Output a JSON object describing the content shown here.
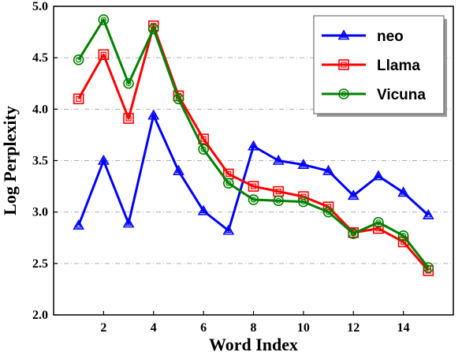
{
  "chart_data": {
    "type": "line",
    "xlabel": "Word Index",
    "ylabel": "Log Perplexity",
    "xlim": [
      0,
      16
    ],
    "ylim": [
      2.0,
      5.0
    ],
    "xticks": [
      2,
      4,
      6,
      8,
      10,
      12,
      14
    ],
    "yticks": [
      2.0,
      2.5,
      3.0,
      3.5,
      4.0,
      4.5,
      5.0
    ],
    "ytick_labels": [
      "2.0",
      "2.5",
      "3.0",
      "3.5",
      "4.0",
      "4.5",
      "5.0"
    ],
    "grid": "horizontal dash-dot",
    "legend_position": "top-right",
    "x": [
      1,
      2,
      3,
      4,
      5,
      6,
      7,
      8,
      9,
      10,
      11,
      12,
      13,
      14,
      15
    ],
    "series": [
      {
        "name": "neo",
        "color": "#0000ff",
        "marker": "triangle",
        "values": [
          2.87,
          3.5,
          2.89,
          3.94,
          3.4,
          3.01,
          2.82,
          3.64,
          3.5,
          3.46,
          3.4,
          3.16,
          3.35,
          3.19,
          2.97
        ]
      },
      {
        "name": "Llama",
        "color": "#ff0000",
        "marker": "square",
        "values": [
          4.1,
          4.53,
          3.91,
          4.81,
          4.13,
          3.71,
          3.37,
          3.25,
          3.2,
          3.15,
          3.05,
          2.8,
          2.84,
          2.71,
          2.43
        ]
      },
      {
        "name": "Vicuna",
        "color": "#008000",
        "marker": "circle",
        "values": [
          4.48,
          4.87,
          4.25,
          4.78,
          4.1,
          3.61,
          3.28,
          3.12,
          3.11,
          3.1,
          3.0,
          2.79,
          2.9,
          2.77,
          2.46
        ]
      }
    ]
  }
}
